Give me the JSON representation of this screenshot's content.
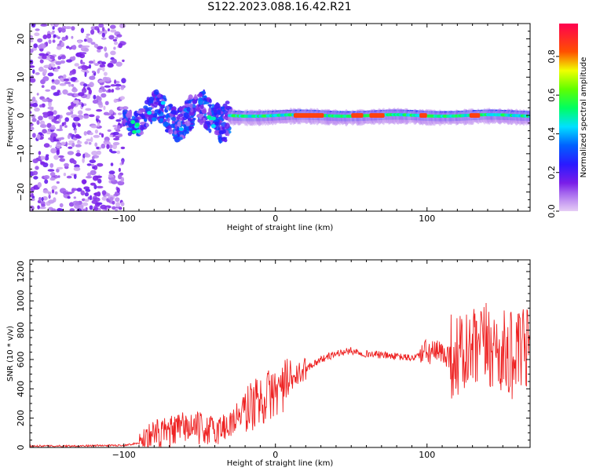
{
  "title": "S122.2023.088.16.42.R21",
  "colors": {
    "snr_line": "#ee2222",
    "axes": "#000000"
  },
  "chart_data": [
    {
      "type": "heatmap",
      "xlabel": "Height of straight line (km)",
      "ylabel": "Frequency (Hz)",
      "xlim": [
        -162,
        168
      ],
      "ylim": [
        -25,
        24
      ],
      "xticks": [
        -100,
        0,
        100
      ],
      "yticks": [
        -20,
        -10,
        0,
        10,
        20
      ],
      "colorbar": {
        "label": "Normalized spectral amplitude",
        "range": [
          0,
          0.97
        ],
        "ticks": [
          0.0,
          0.2,
          0.4,
          0.6,
          0.8
        ],
        "colormap": "gist_rainbow (violet-blue-cyan-green-yellow-red-pink)"
      },
      "features": [
        {
          "region": "noise",
          "x_range": [
            -162,
            -100
          ],
          "y_range": [
            -25,
            24
          ],
          "amplitude": [
            0.0,
            0.15
          ]
        },
        {
          "region": "scattered signal",
          "x_range": [
            -100,
            -30
          ],
          "y_range": [
            -8,
            8
          ],
          "amplitude": [
            0.1,
            0.5
          ]
        },
        {
          "region": "narrow-band signal",
          "x_range": [
            -30,
            168
          ],
          "y_range": [
            -3,
            2
          ],
          "amplitude": [
            0.2,
            0.97
          ]
        }
      ]
    },
    {
      "type": "line",
      "xlabel": "Height of straight line (km)",
      "ylabel": "SNR (10 * v/v)",
      "xlim": [
        -162,
        168
      ],
      "ylim": [
        0,
        1280
      ],
      "xticks": [
        -100,
        0,
        100
      ],
      "yticks": [
        0,
        200,
        400,
        600,
        800,
        1000,
        1200
      ],
      "series": [
        {
          "x": [
            -162,
            -140,
            -120,
            -100,
            -90,
            -80,
            -70,
            -60,
            -50,
            -40,
            -30,
            -20,
            -10,
            0,
            10,
            20,
            30,
            40,
            50,
            60,
            70,
            80,
            90,
            100,
            110,
            120,
            130,
            140,
            150,
            160,
            168
          ],
          "values": [
            10,
            10,
            12,
            15,
            30,
            80,
            100,
            140,
            130,
            110,
            160,
            260,
            320,
            380,
            450,
            540,
            600,
            640,
            660,
            640,
            630,
            620,
            610,
            650,
            640,
            620,
            640,
            700,
            640,
            620,
            700
          ]
        }
      ]
    }
  ]
}
